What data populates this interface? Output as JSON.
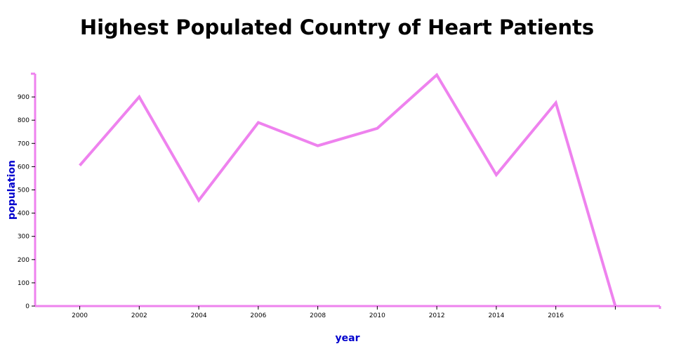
{
  "chart_data": {
    "type": "line",
    "title": "Highest Populated Country of Heart Patients",
    "xlabel": "year",
    "ylabel": "population",
    "x_ticks": [
      "2000",
      "2002",
      "2004",
      "2006",
      "2008",
      "2010",
      "2012",
      "2014",
      "2016"
    ],
    "y_ticks": [
      "0",
      "100",
      "200",
      "300",
      "400",
      "500",
      "600",
      "700",
      "800",
      "900"
    ],
    "xlim": [
      1998.5,
      2019.5
    ],
    "ylim": [
      0,
      1000
    ],
    "series": [
      {
        "x": [
          2000,
          2002,
          2004,
          2006,
          2008,
          2010,
          2012,
          2014,
          2016,
          2018
        ],
        "values": [
          605,
          900,
          455,
          790,
          690,
          765,
          995,
          565,
          875,
          0
        ]
      }
    ],
    "grid": false,
    "colors": {
      "line": "#ee82ee",
      "axis": "#ee82ee",
      "axis_title": "#0000cd"
    }
  }
}
